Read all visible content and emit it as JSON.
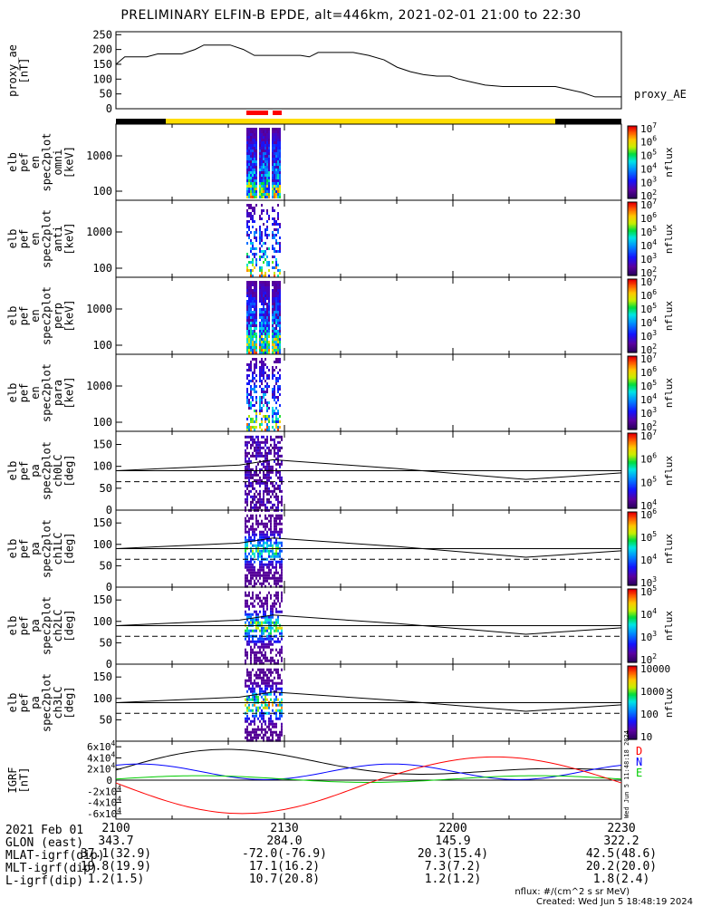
{
  "title": "PRELIMINARY ELFIN-B EPDE, alt=446km, 2021-02-01 21:00 to 22:30",
  "chart_data": [
    {
      "id": "proxy_ae",
      "type": "line",
      "ylabel": [
        "proxy_ae",
        "[nT]"
      ],
      "right_label": "proxy_AE",
      "ylim": [
        0,
        260
      ],
      "yticks": [
        "0",
        "50",
        "100",
        "150",
        "200",
        "250"
      ],
      "x_minutes": [
        0,
        4,
        8,
        14,
        19,
        24,
        30,
        36,
        40,
        46,
        52,
        58,
        63,
        70,
        76,
        84,
        88,
        92,
        98,
        103,
        108,
        115,
        122,
        128,
        134,
        140,
        146,
        152,
        156,
        162,
        168,
        176,
        182,
        188,
        194,
        200,
        206,
        212,
        218,
        224,
        230
      ],
      "values": [
        150,
        175,
        175,
        175,
        185,
        185,
        185,
        200,
        215,
        215,
        215,
        200,
        180,
        180,
        180,
        180,
        175,
        190,
        190,
        190,
        190,
        180,
        165,
        140,
        125,
        115,
        110,
        110,
        100,
        90,
        80,
        75,
        75,
        75,
        75,
        75,
        65,
        55,
        40,
        40,
        40
      ]
    },
    {
      "id": "ephemeris_bar",
      "type": "bar",
      "segments": [
        {
          "color": "#000000",
          "label": "black"
        },
        {
          "color": "#ffdd00",
          "label": "yellow"
        },
        {
          "color": "#000000",
          "label": "black"
        }
      ],
      "science_marks": [
        {
          "color": "#ff0000"
        },
        {
          "color": "#ff0000"
        }
      ]
    },
    {
      "id": "en_omni",
      "type": "heatmap",
      "ylabel": [
        "elb",
        "pef",
        "en",
        "spec2plot",
        "omni",
        "[keV]"
      ],
      "yticks": [
        "100",
        "1000"
      ],
      "cbar": {
        "label": "nflux",
        "ticks": [
          "10^2",
          "10^3",
          "10^4",
          "10^5",
          "10^6",
          "10^7"
        ]
      }
    },
    {
      "id": "en_anti",
      "type": "heatmap",
      "ylabel": [
        "elb",
        "pef",
        "en",
        "spec2plot",
        "anti",
        "[keV]"
      ],
      "yticks": [
        "100",
        "1000"
      ],
      "cbar": {
        "label": "nflux",
        "ticks": [
          "10^2",
          "10^3",
          "10^4",
          "10^5",
          "10^6",
          "10^7"
        ]
      }
    },
    {
      "id": "en_perp",
      "type": "heatmap",
      "ylabel": [
        "elb",
        "pef",
        "en",
        "spec2plot",
        "perp",
        "[keV]"
      ],
      "yticks": [
        "100",
        "1000"
      ],
      "cbar": {
        "label": "nflux",
        "ticks": [
          "10^2",
          "10^3",
          "10^4",
          "10^5",
          "10^6",
          "10^7"
        ]
      }
    },
    {
      "id": "en_para",
      "type": "heatmap",
      "ylabel": [
        "elb",
        "pef",
        "en",
        "spec2plot",
        "para",
        "[keV]"
      ],
      "yticks": [
        "100",
        "1000"
      ],
      "cbar": {
        "label": "nflux",
        "ticks": [
          "10^2",
          "10^3",
          "10^4",
          "10^5",
          "10^6",
          "10^7"
        ]
      }
    },
    {
      "id": "pa_ch0",
      "type": "heatmap",
      "ylabel": [
        "elb",
        "pef",
        "pa",
        "spec2plot",
        "ch0LC",
        "[deg]"
      ],
      "yticks": [
        "0",
        "50",
        "100",
        "150"
      ],
      "ylim": [
        0,
        180
      ],
      "cbar": {
        "label": "nflux",
        "ticks": [
          "10^4",
          "10^5",
          "10^6",
          "10^7"
        ]
      }
    },
    {
      "id": "pa_ch1",
      "type": "heatmap",
      "ylabel": [
        "elb",
        "pef",
        "pa",
        "spec2plot",
        "ch1LC",
        "[deg]"
      ],
      "yticks": [
        "0",
        "50",
        "100",
        "150"
      ],
      "ylim": [
        0,
        180
      ],
      "cbar": {
        "label": "nflux",
        "ticks": [
          "10^3",
          "10^4",
          "10^5",
          "10^6"
        ]
      }
    },
    {
      "id": "pa_ch2",
      "type": "heatmap",
      "ylabel": [
        "elb",
        "pef",
        "pa",
        "spec2plot",
        "ch2LC",
        "[deg]"
      ],
      "yticks": [
        "0",
        "50",
        "100",
        "150"
      ],
      "ylim": [
        0,
        180
      ],
      "cbar": {
        "label": "nflux",
        "ticks": [
          "10^2",
          "10^3",
          "10^4",
          "10^5"
        ]
      }
    },
    {
      "id": "pa_ch3",
      "type": "heatmap",
      "ylabel": [
        "elb",
        "pef",
        "pa",
        "spec2plot",
        "ch3LC",
        "[deg]"
      ],
      "yticks": [
        "50",
        "100",
        "150"
      ],
      "ylim": [
        0,
        180
      ],
      "cbar": {
        "label": "nflux",
        "ticks": [
          "10",
          "100",
          "1000",
          "10000"
        ]
      }
    },
    {
      "id": "igrf",
      "type": "line",
      "ylabel": [
        "IGRF",
        "[nT]"
      ],
      "yticks": [
        "-6x10^4",
        "-4x10^4",
        "-2x10^4",
        "0",
        "2x10^4",
        "4x10^4",
        "6x10^4"
      ],
      "ylim": [
        -70000,
        70000
      ],
      "series": [
        {
          "name": "D",
          "color": "#ff0000"
        },
        {
          "name": "N",
          "color": "#0000ff"
        },
        {
          "name": "E",
          "color": "#00cc00"
        }
      ],
      "side_note": "Wed Jun  5 11:48:18 2024"
    }
  ],
  "footer": {
    "labels": [
      "2021 Feb 01",
      "GLON (east)",
      "MLAT-igrf(dip)",
      "MLT-igrf(dip)",
      "L-igrf(dip)"
    ],
    "columns": [
      {
        "time": "2100",
        "glon": "343.7",
        "mlat": "37.1(32.9)",
        "mlt": "19.8(19.9)",
        "l": "1.2(1.5)"
      },
      {
        "time": "2130",
        "glon": "284.0",
        "mlat": "-72.0(-76.9)",
        "mlt": "17.1(16.2)",
        "l": "10.7(20.8)"
      },
      {
        "time": "2200",
        "glon": "145.9",
        "mlat": "20.3(15.4)",
        "mlt": "7.3(7.2)",
        "l": "1.2(1.2)"
      },
      {
        "time": "2230",
        "glon": "322.2",
        "mlat": "42.5(48.6)",
        "mlt": "20.2(20.0)",
        "l": "1.8(2.4)"
      }
    ],
    "units": "nflux: #/(cm^2 s sr MeV)",
    "created": "Created: Wed Jun  5 18:48:19 2024"
  }
}
